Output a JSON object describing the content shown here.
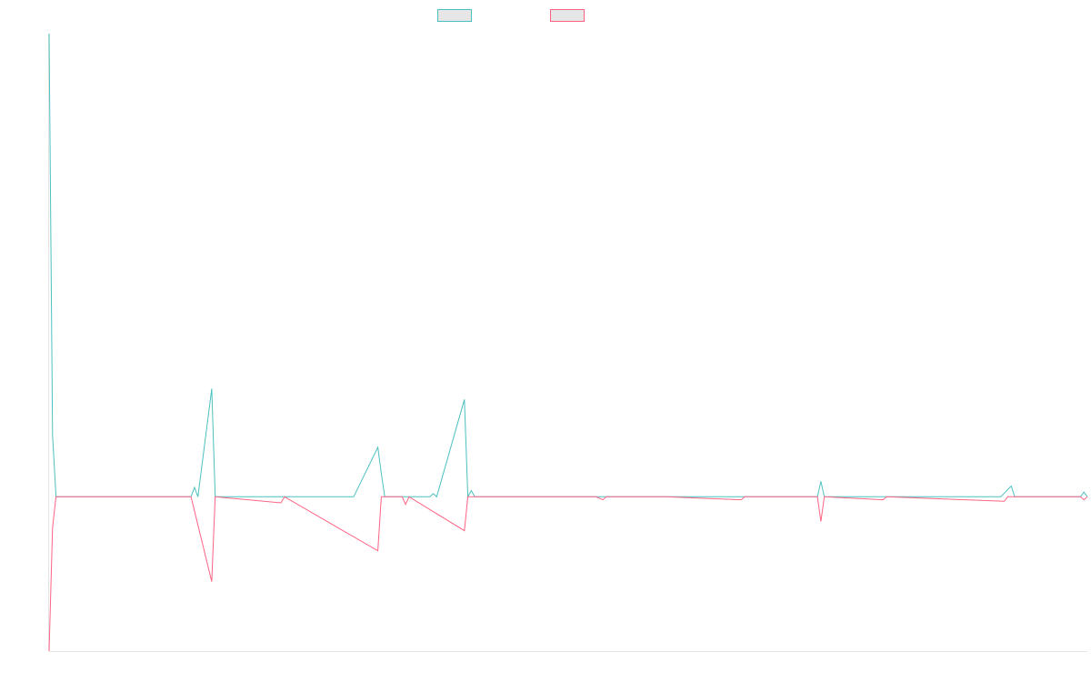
{
  "chart_data": {
    "type": "line",
    "title": "",
    "xlabel": "",
    "ylabel": "",
    "grid": false,
    "legend_position": "top-center",
    "ylim": [
      -1.0,
      3.0
    ],
    "x_count": 300,
    "series": [
      {
        "color": "#4bc0c0",
        "points": [
          [
            0,
            3.0
          ],
          [
            1,
            0.4
          ],
          [
            2,
            0.0
          ],
          [
            16,
            0.0
          ],
          [
            24,
            0.0
          ],
          [
            31,
            0.0
          ],
          [
            41,
            0.0
          ],
          [
            42,
            0.06
          ],
          [
            43,
            0.0
          ],
          [
            47,
            0.7
          ],
          [
            48,
            0.0
          ],
          [
            67,
            0.0
          ],
          [
            88,
            0.0
          ],
          [
            95,
            0.32
          ],
          [
            96,
            0.15
          ],
          [
            97,
            0.0
          ],
          [
            103,
            0.0
          ],
          [
            110,
            0.0
          ],
          [
            111,
            0.02
          ],
          [
            112,
            0.0
          ],
          [
            120,
            0.63
          ],
          [
            121,
            0.0
          ],
          [
            122,
            0.04
          ],
          [
            123,
            0.0
          ],
          [
            130,
            0.0
          ],
          [
            145,
            0.0
          ],
          [
            158,
            0.0
          ],
          [
            161,
            0.0
          ],
          [
            172,
            0.0
          ],
          [
            178,
            0.0
          ],
          [
            211,
            0.0
          ],
          [
            222,
            0.0
          ],
          [
            223,
            0.1
          ],
          [
            224,
            0.0
          ],
          [
            275,
            0.0
          ],
          [
            278,
            0.07
          ],
          [
            279,
            0.0
          ],
          [
            298,
            0.0
          ],
          [
            299,
            0.03
          ],
          [
            300,
            0.0
          ]
        ]
      },
      {
        "color": "#ff6384",
        "points": [
          [
            0,
            -1.0
          ],
          [
            1,
            -0.2
          ],
          [
            2,
            0.0
          ],
          [
            16,
            0.0
          ],
          [
            24,
            0.0
          ],
          [
            31,
            0.0
          ],
          [
            41,
            0.0
          ],
          [
            47,
            -0.55
          ],
          [
            48,
            0.0
          ],
          [
            67,
            -0.04
          ],
          [
            68,
            0.0
          ],
          [
            95,
            -0.35
          ],
          [
            96,
            0.0
          ],
          [
            102,
            0.0
          ],
          [
            103,
            -0.05
          ],
          [
            104,
            0.0
          ],
          [
            120,
            -0.22
          ],
          [
            121,
            0.0
          ],
          [
            145,
            0.0
          ],
          [
            158,
            0.0
          ],
          [
            160,
            -0.02
          ],
          [
            161,
            0.0
          ],
          [
            172,
            0.0
          ],
          [
            178,
            0.0
          ],
          [
            200,
            -0.02
          ],
          [
            201,
            0.0
          ],
          [
            222,
            0.0
          ],
          [
            223,
            -0.16
          ],
          [
            224,
            0.0
          ],
          [
            241,
            -0.02
          ],
          [
            242,
            0.0
          ],
          [
            276,
            -0.03
          ],
          [
            277,
            0.0
          ],
          [
            298,
            0.0
          ],
          [
            299,
            -0.02
          ],
          [
            300,
            0.0
          ]
        ]
      }
    ]
  }
}
